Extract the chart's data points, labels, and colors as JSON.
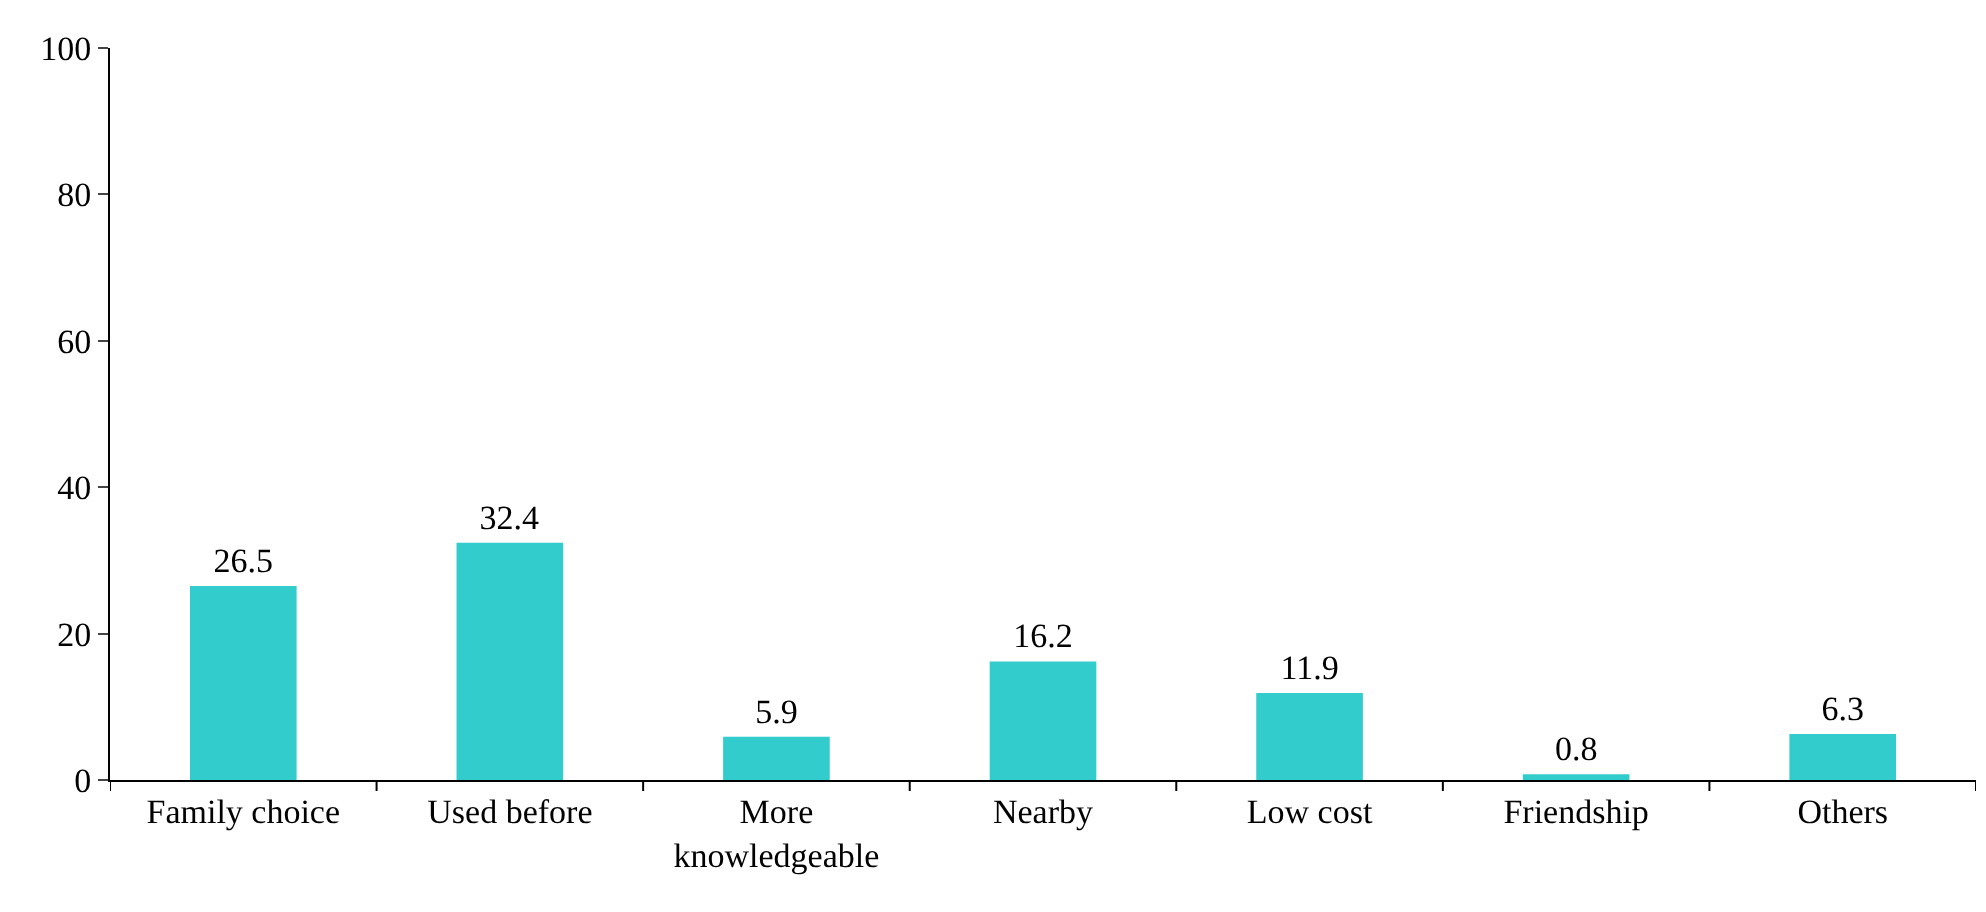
{
  "chart_data": {
    "type": "bar",
    "categories": [
      "Family choice",
      "Used before",
      "More knowledgeable",
      "Nearby",
      "Low cost",
      "Friendship",
      "Others"
    ],
    "values": [
      26.5,
      32.4,
      5.9,
      16.2,
      11.9,
      0.8,
      6.3
    ],
    "color": "#33cccc",
    "ylim": [
      0,
      100
    ],
    "yticks": [
      0,
      20,
      40,
      60,
      80,
      100
    ],
    "data_labels": true
  }
}
